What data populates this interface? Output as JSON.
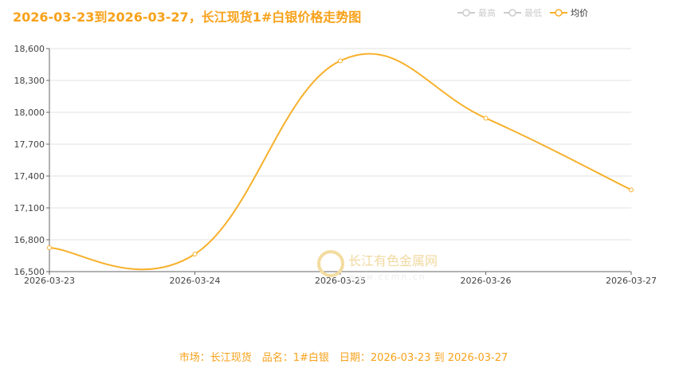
{
  "title": "2026-03-23到2026-03-27，长江现货1#白银价格走势图",
  "legend": [
    {
      "name": "最高",
      "active": false
    },
    {
      "name": "最低",
      "active": false
    },
    {
      "name": "均价",
      "active": true
    }
  ],
  "watermark": "长江有色金属网 www.ccmn.cn",
  "footer": "市场：长江现货　品名：1#白银　日期：2026-03-23 到 2026-03-27",
  "colors": {
    "line": "#f7b02b",
    "title": "#f7a21b",
    "inactive": "#cccccc"
  },
  "chart_data": {
    "type": "line",
    "categories": [
      "2026-03-23",
      "2026-03-24",
      "2026-03-25",
      "2026-03-26",
      "2026-03-27"
    ],
    "series": [
      {
        "name": "均价",
        "values": [
          16725,
          16665,
          18485,
          17945,
          17270
        ]
      }
    ],
    "ylim": [
      16500,
      18600
    ],
    "yticks": [
      16500,
      16800,
      17100,
      17400,
      17700,
      18000,
      18300,
      18600
    ],
    "grid": true,
    "smooth": true,
    "legend_position": "top-right"
  }
}
